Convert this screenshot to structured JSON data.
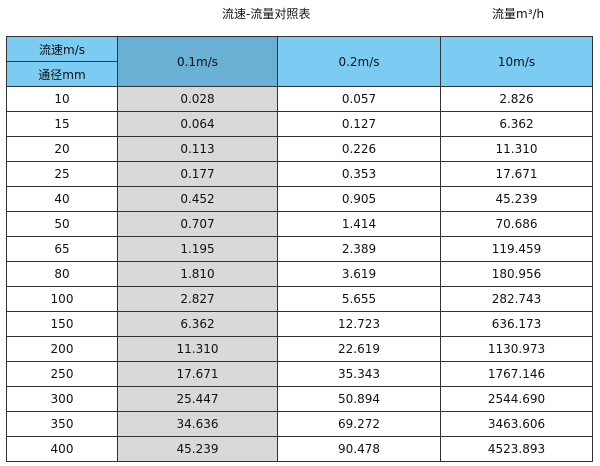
{
  "title": "流速-流量对照表",
  "unit_label": "流量m³/h",
  "header": {
    "velocity_label": "流速m/s",
    "diameter_label": "通径mm",
    "columns": [
      "0.1m/s",
      "0.2m/s",
      "10m/s"
    ]
  },
  "rows": [
    [
      "10",
      "0.028",
      "0.057",
      "2.826"
    ],
    [
      "15",
      "0.064",
      "0.127",
      "6.362"
    ],
    [
      "20",
      "0.113",
      "0.226",
      "11.310"
    ],
    [
      "25",
      "0.177",
      "0.353",
      "17.671"
    ],
    [
      "40",
      "0.452",
      "0.905",
      "45.239"
    ],
    [
      "50",
      "0.707",
      "1.414",
      "70.686"
    ],
    [
      "65",
      "1.195",
      "2.389",
      "119.459"
    ],
    [
      "80",
      "1.810",
      "3.619",
      "180.956"
    ],
    [
      "100",
      "2.827",
      "5.655",
      "282.743"
    ],
    [
      "150",
      "6.362",
      "12.723",
      "636.173"
    ],
    [
      "200",
      "11.310",
      "22.619",
      "1130.973"
    ],
    [
      "250",
      "17.671",
      "35.343",
      "1767.146"
    ],
    [
      "300",
      "25.447",
      "50.894",
      "2544.690"
    ],
    [
      "350",
      "34.636",
      "69.272",
      "3463.606"
    ],
    [
      "400",
      "45.239",
      "90.478",
      "4523.893"
    ]
  ],
  "colors": {
    "header": "#7ccbf2",
    "header_highlight": "#6aafd4",
    "highlight_column": "#d9d9d9"
  }
}
